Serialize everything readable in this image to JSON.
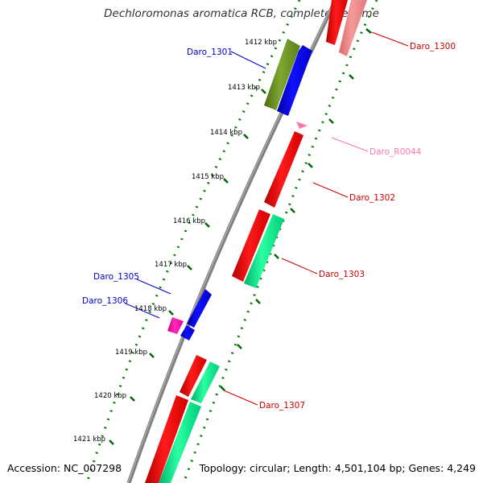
{
  "title": "Dechloromonas aromatica RCB, complete genome",
  "footer": {
    "accession": "Accession: NC_007298",
    "summary": "Topology: circular; Length: 4,501,104 bp; Genes: 4,249"
  },
  "kbp_labels": [
    "1412 kbp",
    "1413 kbp",
    "1414 kbp",
    "1415 kbp",
    "1416 kbp",
    "1417 kbp",
    "1418 kbp",
    "1419 kbp",
    "1420 kbp",
    "1421 kbp"
  ],
  "gene_labels": {
    "daro_1300": "Daro_1300",
    "daro_1301": "Daro_1301",
    "daro_r0044": "Daro_R0044",
    "daro_1302": "Daro_1302",
    "daro_1303": "Daro_1303",
    "daro_1305": "Daro_1305",
    "daro_1306": "Daro_1306",
    "daro_1307": "Daro_1307"
  },
  "colors": {
    "backbone": "#808080",
    "tick_dots": "#008000",
    "label_red": "#cc0000",
    "label_blue": "#0000cc",
    "label_pink": "#ff77aa",
    "gene_red": "#ff0000",
    "gene_blue": "#0000ff",
    "gene_green": "#00ee88",
    "gene_olive": "#6b8e23",
    "gene_magenta": "#ff00aa",
    "gene_pink_light": "#f08080"
  }
}
